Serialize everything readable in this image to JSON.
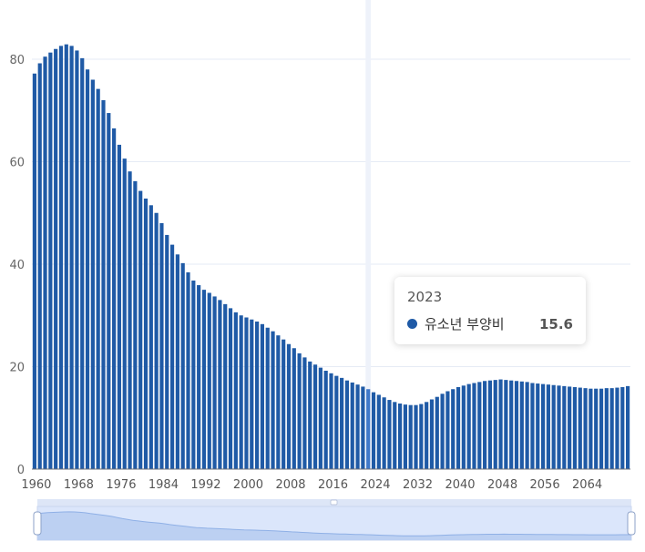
{
  "chart_data": {
    "type": "bar",
    "series_name": "유소년 부양비",
    "color": "#1f5aa6",
    "highlight_color": "#3f78c9",
    "x": [
      1960,
      1961,
      1962,
      1963,
      1964,
      1965,
      1966,
      1967,
      1968,
      1969,
      1970,
      1971,
      1972,
      1973,
      1974,
      1975,
      1976,
      1977,
      1978,
      1979,
      1980,
      1981,
      1982,
      1983,
      1984,
      1985,
      1986,
      1987,
      1988,
      1989,
      1990,
      1991,
      1992,
      1993,
      1994,
      1995,
      1996,
      1997,
      1998,
      1999,
      2000,
      2001,
      2002,
      2003,
      2004,
      2005,
      2006,
      2007,
      2008,
      2009,
      2010,
      2011,
      2012,
      2013,
      2014,
      2015,
      2016,
      2017,
      2018,
      2019,
      2020,
      2021,
      2022,
      2023,
      2024,
      2025,
      2026,
      2027,
      2028,
      2029,
      2030,
      2031,
      2032,
      2033,
      2034,
      2035,
      2036,
      2037,
      2038,
      2039,
      2040,
      2041,
      2042,
      2043,
      2044,
      2045,
      2046,
      2047,
      2048,
      2049,
      2050,
      2051,
      2052,
      2053,
      2054,
      2055,
      2056,
      2057,
      2058,
      2059,
      2060,
      2061,
      2062,
      2063,
      2064,
      2065,
      2066,
      2067,
      2068,
      2069,
      2070,
      2071,
      2072
    ],
    "values": [
      77.2,
      79.2,
      80.5,
      81.3,
      82.0,
      82.6,
      82.9,
      82.6,
      81.7,
      80.2,
      78.0,
      76.0,
      74.2,
      72.0,
      69.5,
      66.5,
      63.3,
      60.6,
      58.1,
      56.2,
      54.3,
      52.8,
      51.5,
      50.0,
      48.0,
      45.7,
      43.8,
      41.9,
      40.2,
      38.4,
      36.8,
      35.9,
      35.0,
      34.4,
      33.7,
      33.0,
      32.2,
      31.4,
      30.6,
      30.0,
      29.6,
      29.2,
      28.8,
      28.3,
      27.6,
      26.9,
      26.1,
      25.3,
      24.4,
      23.6,
      22.6,
      21.8,
      21.0,
      20.4,
      19.8,
      19.2,
      18.7,
      18.2,
      17.8,
      17.3,
      16.9,
      16.5,
      16.1,
      15.6,
      15.0,
      14.5,
      14.0,
      13.5,
      13.1,
      12.8,
      12.6,
      12.5,
      12.5,
      12.7,
      13.1,
      13.6,
      14.1,
      14.7,
      15.2,
      15.6,
      16.0,
      16.3,
      16.6,
      16.8,
      17.0,
      17.2,
      17.3,
      17.4,
      17.5,
      17.4,
      17.3,
      17.2,
      17.1,
      17.0,
      16.8,
      16.7,
      16.6,
      16.5,
      16.4,
      16.3,
      16.2,
      16.1,
      16.0,
      15.9,
      15.8,
      15.7,
      15.7,
      15.7,
      15.8,
      15.8,
      15.9,
      16.0,
      16.2
    ],
    "x_ticks": [
      1960,
      1968,
      1976,
      1984,
      1992,
      2000,
      2008,
      2016,
      2024,
      2032,
      2040,
      2048,
      2056,
      2064
    ],
    "y_ticks": [
      0,
      20,
      40,
      60,
      80
    ],
    "ylim": [
      0,
      88
    ]
  },
  "tooltip": {
    "year": "2023",
    "series": "유소년 부양비",
    "value": "15.6",
    "dot_color": "#1f5aa6"
  },
  "highlight_year": 2023
}
